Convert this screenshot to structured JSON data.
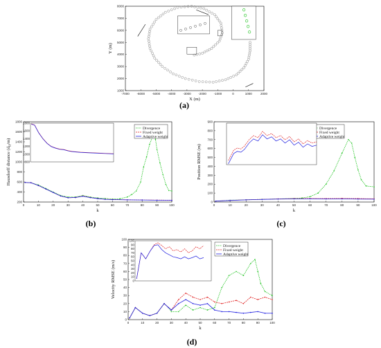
{
  "figure": {
    "panels": [
      {
        "id": "a",
        "label": "(a)"
      },
      {
        "id": "b",
        "label": "(b)"
      },
      {
        "id": "c",
        "label": "(c)"
      },
      {
        "id": "d",
        "label": "(d)"
      }
    ]
  },
  "colors": {
    "divergence": "#22c422",
    "fixed": "#e02020",
    "adaptive": "#2020e0",
    "trajectory": "#888888"
  },
  "chart_data": [
    {
      "id": "a",
      "type": "scatter",
      "xlabel": "X (m)",
      "ylabel": "Y (m)",
      "xlim": [
        -7000,
        2000
      ],
      "ylim": [
        1000,
        8000
      ],
      "xticks": [
        -7000,
        -6000,
        -5000,
        -4000,
        -3000,
        -2000,
        -1000,
        0,
        1000,
        2000
      ],
      "yticks": [
        1000,
        2000,
        3000,
        4000,
        5000,
        6000,
        7000,
        8000
      ],
      "trajectory_description_points": [
        [
          1100,
          5000
        ],
        [
          1100,
          4300
        ],
        [
          1000,
          3600
        ],
        [
          700,
          2900
        ],
        [
          200,
          2300
        ],
        [
          -500,
          1900
        ],
        [
          -1300,
          1700
        ],
        [
          -2200,
          1750
        ],
        [
          -3100,
          2000
        ],
        [
          -3900,
          2400
        ],
        [
          -4600,
          3000
        ],
        [
          -5100,
          3700
        ],
        [
          -5400,
          4500
        ],
        [
          -5500,
          5300
        ],
        [
          -5400,
          6100
        ],
        [
          -5000,
          6900
        ],
        [
          -4400,
          7500
        ],
        [
          -3600,
          7900
        ],
        [
          -2700,
          8000
        ],
        [
          -1900,
          7800
        ],
        [
          -1200,
          7300
        ],
        [
          -800,
          6600
        ],
        [
          -700,
          5800
        ],
        [
          -900,
          5100
        ],
        [
          -1400,
          4500
        ],
        [
          -2000,
          4100
        ],
        [
          -2700,
          3900
        ]
      ]
    },
    {
      "id": "b",
      "type": "line",
      "xlabel": "k",
      "ylabel": "Hausdorff distance (d",
      "ylabel_sub": "H",
      "ylabel_tail": "/m)",
      "xlim": [
        0,
        100
      ],
      "ylim": [
        200,
        1800
      ],
      "xticks": [
        0,
        10,
        20,
        30,
        40,
        50,
        60,
        70,
        80,
        90,
        100
      ],
      "yticks": [
        200,
        400,
        600,
        800,
        1000,
        1200,
        1400,
        1600,
        1800
      ],
      "legend": [
        "Divergence",
        "Fixed weight",
        "Adaptive weight"
      ],
      "series": [
        {
          "name": "Divergence",
          "key": "divergence",
          "points": [
            [
              1,
              590
            ],
            [
              5,
              585
            ],
            [
              10,
              540
            ],
            [
              15,
              470
            ],
            [
              20,
              400
            ],
            [
              25,
              330
            ],
            [
              30,
              300
            ],
            [
              35,
              300
            ],
            [
              40,
              330
            ],
            [
              45,
              300
            ],
            [
              50,
              280
            ],
            [
              55,
              270
            ],
            [
              60,
              260
            ],
            [
              65,
              265
            ],
            [
              70,
              300
            ],
            [
              73,
              350
            ],
            [
              76,
              420
            ],
            [
              79,
              600
            ],
            [
              81,
              900
            ],
            [
              83,
              1100
            ],
            [
              85,
              1350
            ],
            [
              87,
              1500
            ],
            [
              88,
              1600
            ],
            [
              89,
              1450
            ],
            [
              90,
              1250
            ],
            [
              92,
              980
            ],
            [
              94,
              750
            ],
            [
              96,
              550
            ],
            [
              98,
              430
            ],
            [
              100,
              420
            ]
          ]
        },
        {
          "name": "Fixed weight",
          "key": "fixed",
          "points": [
            [
              1,
              590
            ],
            [
              5,
              585
            ],
            [
              10,
              530
            ],
            [
              15,
              460
            ],
            [
              20,
              390
            ],
            [
              25,
              320
            ],
            [
              30,
              285
            ],
            [
              35,
              290
            ],
            [
              40,
              320
            ],
            [
              45,
              290
            ],
            [
              50,
              270
            ],
            [
              55,
              255
            ],
            [
              60,
              250
            ],
            [
              70,
              245
            ],
            [
              80,
              240
            ],
            [
              90,
              238
            ],
            [
              100,
              235
            ]
          ]
        },
        {
          "name": "Adaptive weight",
          "key": "adaptive",
          "points": [
            [
              1,
              590
            ],
            [
              5,
              585
            ],
            [
              10,
              530
            ],
            [
              15,
              460
            ],
            [
              20,
              390
            ],
            [
              25,
              320
            ],
            [
              30,
              285
            ],
            [
              35,
              290
            ],
            [
              40,
              315
            ],
            [
              45,
              288
            ],
            [
              50,
              268
            ],
            [
              55,
              253
            ],
            [
              60,
              248
            ],
            [
              70,
              243
            ],
            [
              80,
              240
            ],
            [
              90,
              236
            ],
            [
              100,
              233
            ]
          ]
        }
      ],
      "inset": {
        "xlim": [
          0,
          100
        ],
        "ylim": [
          800,
          1800
        ],
        "yticks": [
          800,
          1000,
          1200,
          1400,
          1600,
          1800
        ],
        "xticks": [
          10,
          20,
          30,
          40,
          50,
          60,
          70,
          80,
          90,
          100
        ]
      }
    },
    {
      "id": "c",
      "type": "line",
      "xlabel": "k",
      "ylabel": "Position RMSE (m)",
      "xlim": [
        0,
        100
      ],
      "ylim": [
        0,
        900
      ],
      "xticks": [
        0,
        10,
        20,
        30,
        40,
        50,
        60,
        70,
        80,
        90,
        100
      ],
      "yticks": [
        0,
        100,
        200,
        300,
        400,
        500,
        600,
        700,
        800,
        900
      ],
      "legend": [
        "Divergence",
        "Fixed weight",
        "Adaptive weight"
      ],
      "series": [
        {
          "name": "Divergence",
          "key": "divergence",
          "points": [
            [
              1,
              10
            ],
            [
              10,
              20
            ],
            [
              20,
              25
            ],
            [
              30,
              30
            ],
            [
              40,
              35
            ],
            [
              50,
              40
            ],
            [
              55,
              45
            ],
            [
              60,
              60
            ],
            [
              65,
              100
            ],
            [
              70,
              200
            ],
            [
              75,
              350
            ],
            [
              80,
              550
            ],
            [
              84,
              700
            ],
            [
              86,
              660
            ],
            [
              88,
              500
            ],
            [
              90,
              360
            ],
            [
              92,
              250
            ],
            [
              95,
              180
            ],
            [
              100,
              170
            ]
          ]
        },
        {
          "name": "Fixed weight",
          "key": "fixed",
          "points": [
            [
              1,
              10
            ],
            [
              10,
              18
            ],
            [
              20,
              25
            ],
            [
              30,
              30
            ],
            [
              40,
              35
            ],
            [
              50,
              38
            ],
            [
              60,
              40
            ],
            [
              70,
              38
            ],
            [
              80,
              40
            ],
            [
              90,
              38
            ],
            [
              100,
              36
            ]
          ]
        },
        {
          "name": "Adaptive weight",
          "key": "adaptive",
          "points": [
            [
              1,
              10
            ],
            [
              10,
              17
            ],
            [
              20,
              24
            ],
            [
              30,
              29
            ],
            [
              40,
              33
            ],
            [
              50,
              35
            ],
            [
              60,
              36
            ],
            [
              70,
              34
            ],
            [
              80,
              35
            ],
            [
              90,
              33
            ],
            [
              100,
              32
            ]
          ]
        }
      ]
    },
    {
      "id": "d",
      "type": "line",
      "xlabel": "k",
      "ylabel": "Velocity RMSE (m/s)",
      "xlim": [
        0,
        100
      ],
      "ylim": [
        0,
        100
      ],
      "xticks": [
        0,
        10,
        20,
        30,
        40,
        50,
        60,
        70,
        80,
        90,
        100
      ],
      "yticks": [
        0,
        10,
        20,
        30,
        40,
        50,
        60,
        70,
        80,
        90,
        100
      ],
      "legend": [
        "Divergence",
        "Fixed weight",
        "Adaptive weight"
      ],
      "series": [
        {
          "name": "Divergence",
          "key": "divergence",
          "points": [
            [
              1,
              2
            ],
            [
              5,
              15
            ],
            [
              10,
              8
            ],
            [
              15,
              5
            ],
            [
              20,
              8
            ],
            [
              25,
              20
            ],
            [
              28,
              15
            ],
            [
              30,
              10
            ],
            [
              35,
              10
            ],
            [
              40,
              18
            ],
            [
              45,
              12
            ],
            [
              50,
              15
            ],
            [
              55,
              12
            ],
            [
              60,
              15
            ],
            [
              65,
              40
            ],
            [
              70,
              55
            ],
            [
              75,
              60
            ],
            [
              80,
              55
            ],
            [
              85,
              70
            ],
            [
              88,
              75
            ],
            [
              90,
              60
            ],
            [
              92,
              45
            ],
            [
              95,
              35
            ],
            [
              100,
              30
            ]
          ]
        },
        {
          "name": "Fixed weight",
          "key": "fixed",
          "points": [
            [
              1,
              2
            ],
            [
              5,
              15
            ],
            [
              10,
              8
            ],
            [
              15,
              5
            ],
            [
              20,
              8
            ],
            [
              25,
              20
            ],
            [
              28,
              15
            ],
            [
              30,
              12
            ],
            [
              35,
              25
            ],
            [
              40,
              33
            ],
            [
              45,
              28
            ],
            [
              50,
              25
            ],
            [
              55,
              28
            ],
            [
              60,
              22
            ],
            [
              65,
              20
            ],
            [
              70,
              22
            ],
            [
              75,
              24
            ],
            [
              80,
              20
            ],
            [
              85,
              28
            ],
            [
              90,
              25
            ],
            [
              95,
              28
            ],
            [
              100,
              25
            ]
          ]
        },
        {
          "name": "Adaptive weight",
          "key": "adaptive",
          "points": [
            [
              1,
              2
            ],
            [
              5,
              15
            ],
            [
              10,
              8
            ],
            [
              15,
              5
            ],
            [
              20,
              8
            ],
            [
              25,
              20
            ],
            [
              28,
              15
            ],
            [
              30,
              12
            ],
            [
              35,
              20
            ],
            [
              40,
              25
            ],
            [
              45,
              20
            ],
            [
              50,
              18
            ],
            [
              55,
              20
            ],
            [
              60,
              12
            ],
            [
              65,
              10
            ],
            [
              70,
              10
            ],
            [
              75,
              9
            ],
            [
              80,
              8
            ],
            [
              85,
              9
            ],
            [
              90,
              10
            ],
            [
              95,
              8
            ],
            [
              100,
              8
            ]
          ]
        }
      ],
      "inset": {
        "xlim": [
          0,
          100
        ],
        "ylim": [
          0,
          100
        ],
        "yticks": [
          0,
          10,
          20,
          30,
          40,
          50,
          60,
          70,
          80,
          90,
          100
        ]
      }
    }
  ]
}
